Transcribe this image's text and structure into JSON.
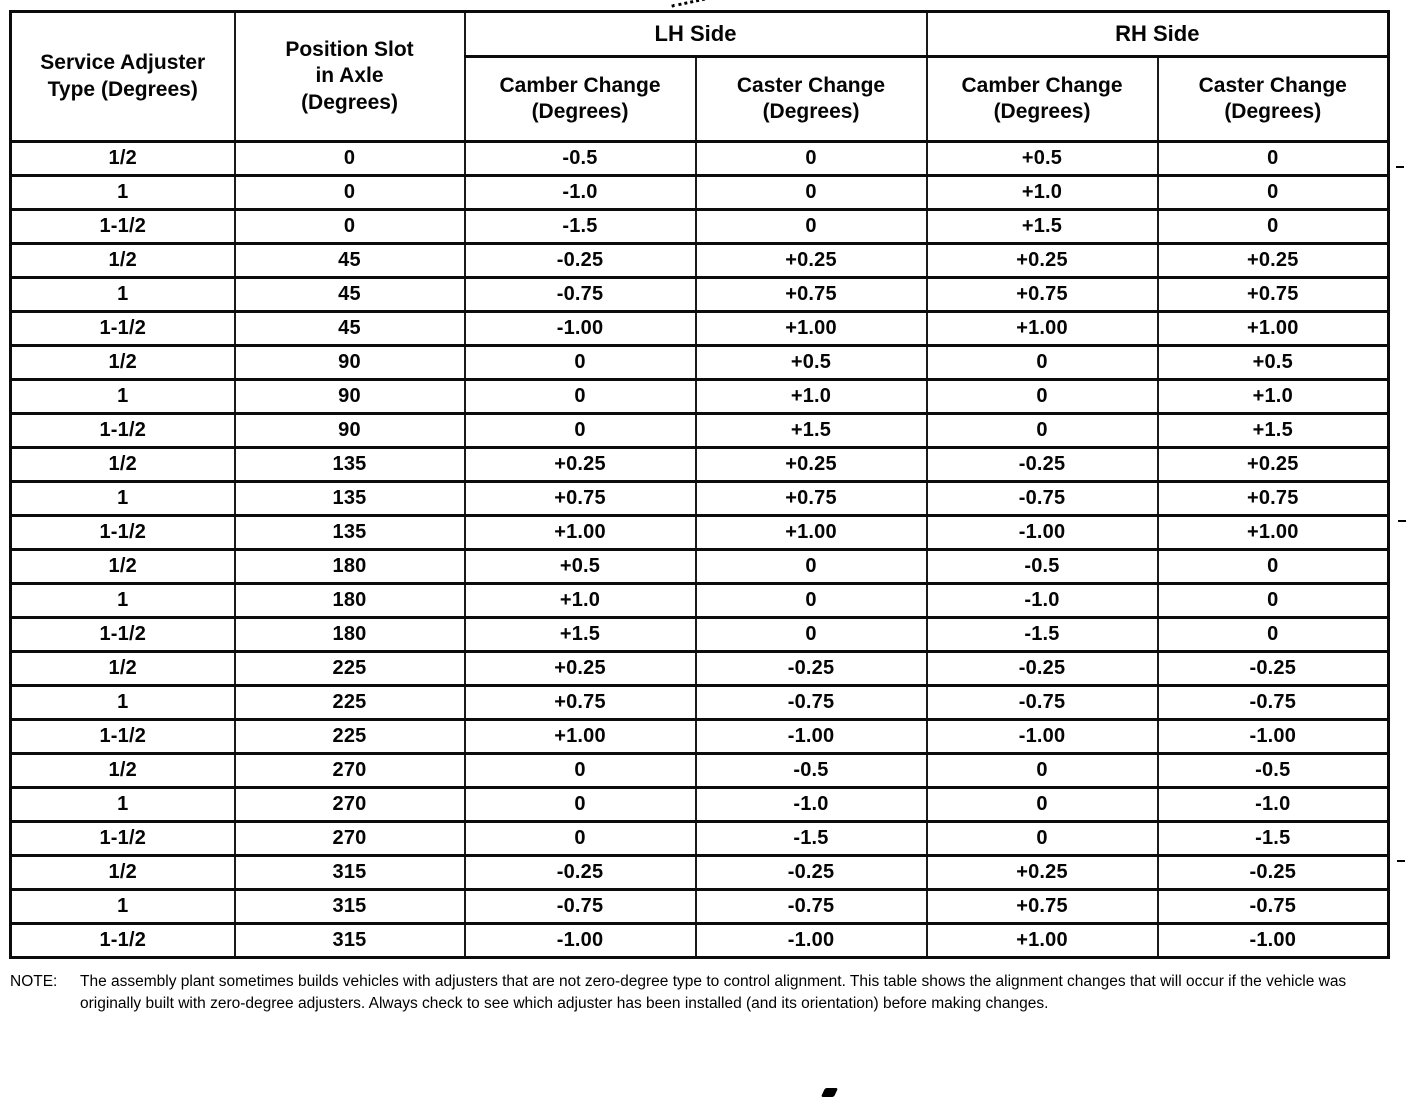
{
  "table": {
    "group_headers": [
      {
        "label": "LH Side"
      },
      {
        "label": "RH Side"
      }
    ],
    "columns": [
      {
        "id": "service_adjuster_type",
        "label": "Service Adjuster\nType (Degrees)"
      },
      {
        "id": "position_slot_in_axle",
        "label": "Position Slot\nin Axle\n(Degrees)"
      },
      {
        "id": "lh_camber_change",
        "label": "Camber Change\n(Degrees)"
      },
      {
        "id": "lh_caster_change",
        "label": "Caster Change\n(Degrees)"
      },
      {
        "id": "rh_camber_change",
        "label": "Camber Change\n(Degrees)"
      },
      {
        "id": "rh_caster_change",
        "label": "Caster Change\n(Degrees)"
      }
    ],
    "rows": [
      [
        "1/2",
        "0",
        "-0.5",
        "0",
        "+0.5",
        "0"
      ],
      [
        "1",
        "0",
        "-1.0",
        "0",
        "+1.0",
        "0"
      ],
      [
        "1-1/2",
        "0",
        "-1.5",
        "0",
        "+1.5",
        "0"
      ],
      [
        "1/2",
        "45",
        "-0.25",
        "+0.25",
        "+0.25",
        "+0.25"
      ],
      [
        "1",
        "45",
        "-0.75",
        "+0.75",
        "+0.75",
        "+0.75"
      ],
      [
        "1-1/2",
        "45",
        "-1.00",
        "+1.00",
        "+1.00",
        "+1.00"
      ],
      [
        "1/2",
        "90",
        "0",
        "+0.5",
        "0",
        "+0.5"
      ],
      [
        "1",
        "90",
        "0",
        "+1.0",
        "0",
        "+1.0"
      ],
      [
        "1-1/2",
        "90",
        "0",
        "+1.5",
        "0",
        "+1.5"
      ],
      [
        "1/2",
        "135",
        "+0.25",
        "+0.25",
        "-0.25",
        "+0.25"
      ],
      [
        "1",
        "135",
        "+0.75",
        "+0.75",
        "-0.75",
        "+0.75"
      ],
      [
        "1-1/2",
        "135",
        "+1.00",
        "+1.00",
        "-1.00",
        "+1.00"
      ],
      [
        "1/2",
        "180",
        "+0.5",
        "0",
        "-0.5",
        "0"
      ],
      [
        "1",
        "180",
        "+1.0",
        "0",
        "-1.0",
        "0"
      ],
      [
        "1-1/2",
        "180",
        "+1.5",
        "0",
        "-1.5",
        "0"
      ],
      [
        "1/2",
        "225",
        "+0.25",
        "-0.25",
        "-0.25",
        "-0.25"
      ],
      [
        "1",
        "225",
        "+0.75",
        "-0.75",
        "-0.75",
        "-0.75"
      ],
      [
        "1-1/2",
        "225",
        "+1.00",
        "-1.00",
        "-1.00",
        "-1.00"
      ],
      [
        "1/2",
        "270",
        "0",
        "-0.5",
        "0",
        "-0.5"
      ],
      [
        "1",
        "270",
        "0",
        "-1.0",
        "0",
        "-1.0"
      ],
      [
        "1-1/2",
        "270",
        "0",
        "-1.5",
        "0",
        "-1.5"
      ],
      [
        "1/2",
        "315",
        "-0.25",
        "-0.25",
        "+0.25",
        "-0.25"
      ],
      [
        "1",
        "315",
        "-0.75",
        "-0.75",
        "+0.75",
        "-0.75"
      ],
      [
        "1-1/2",
        "315",
        "-1.00",
        "-1.00",
        "+1.00",
        "-1.00"
      ]
    ]
  },
  "note": {
    "label": "NOTE:",
    "text": "The assembly plant sometimes builds vehicles with adjusters that are not zero-degree type to control alignment. This table shows the alignment changes that will occur if the vehicle was originally built with zero-degree adjusters. Always check to see which adjuster has been installed (and its orientation) before making changes."
  }
}
